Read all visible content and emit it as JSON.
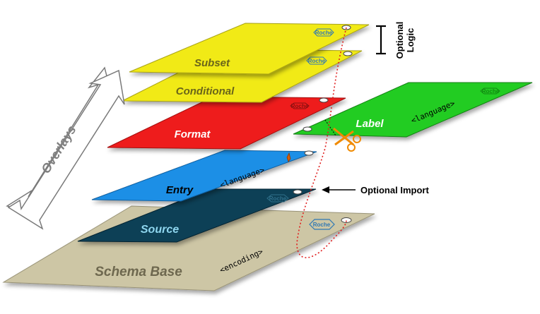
{
  "title": "",
  "layers": {
    "subset": {
      "label": "Subset",
      "logo": "Roche",
      "color": "#f1ea18"
    },
    "conditional": {
      "label": "Conditional",
      "logo": "Roche",
      "color": "#f1ea18"
    },
    "format": {
      "label": "Format",
      "logo": "Roche",
      "color": "#ee1c1c"
    },
    "label": {
      "label": "Label",
      "tag": "<language>",
      "logo": "Roche",
      "color": "#22cc22"
    },
    "entry": {
      "label": "Entry",
      "tag": "<language>",
      "color": "#1f8fe6"
    },
    "source": {
      "label": "Source",
      "logo": "Roche",
      "color": "#0d3f56"
    },
    "schema_base": {
      "label": "Schema Base",
      "tag": "<encoding>",
      "logo": "Roche",
      "color": "#cdc6a5"
    }
  },
  "annotations": {
    "overlays": "Overlays",
    "optional_logic_line1": "Optional",
    "optional_logic_line2": "Logic",
    "optional_import": "Optional Import"
  },
  "icons": [
    "scissors-icon",
    "cursor-icon",
    "double-arrow",
    "logo-badge"
  ]
}
